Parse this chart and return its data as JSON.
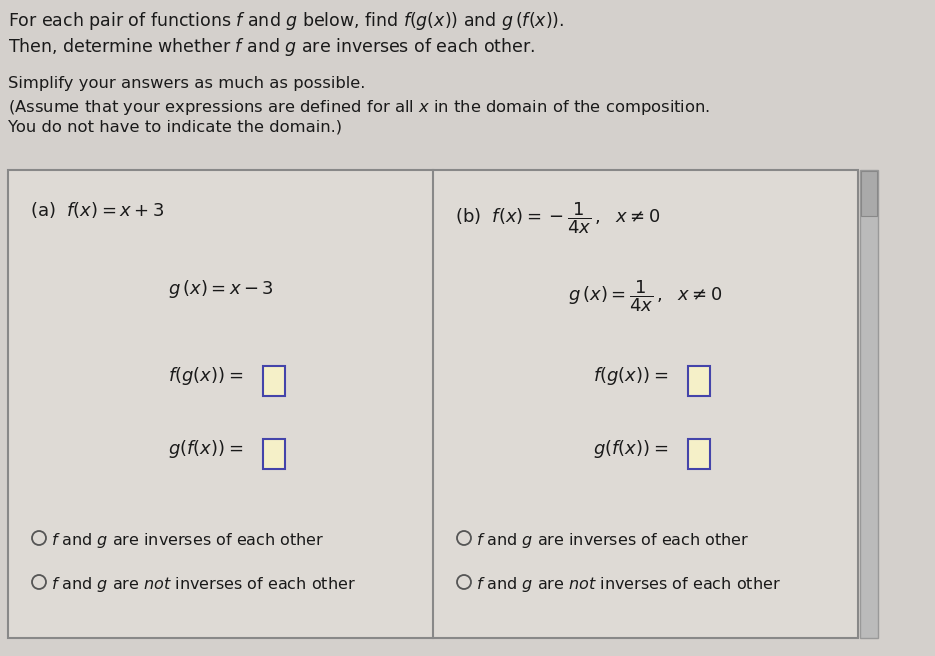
{
  "bg_color": "#d4d0cc",
  "table_bg_color": "#dedad5",
  "box_border_color": "#888888",
  "text_color": "#1a1a1a",
  "header_lines": [
    "For each pair of functions $\\mathit{f}$ and $g$ below, find $f(g(x))$ and $g\\,(f(x))$.",
    "Then, determine whether $\\mathit{f}$ and $g$ are inverses of each other."
  ],
  "subheader_lines": [
    "Simplify your answers as much as possible.",
    "(Assume that your expressions are defined for all $x$ in the domain of the composition.",
    "You do not have to indicate the domain.)"
  ],
  "col_a_fx": "(a)  $f(x) = x + 3$",
  "col_a_gx": "$g\\,(x) = x - 3$",
  "col_a_fgx_label": "$f(g(x)) = $",
  "col_a_gfx_label": "$g(f(x)) = $",
  "col_b_fx": "(b)  $f(x) = -\\dfrac{1}{4x}\\,,\\ \\ x \\neq 0$",
  "col_b_gx": "$g\\,(x) = \\dfrac{1}{4x}\\,,\\ \\ x \\neq 0$",
  "col_b_fgx_label": "$f(g(x)) = $",
  "col_b_gfx_label": "$g(f(x)) = $",
  "radio1_text": "$f$ and $g$ are inverses of each other",
  "radio2_text": "$f$ and $g$ are $\\it{not}$ inverses of each other",
  "input_box_fill": "#f5f0c8",
  "input_box_edge": "#4444aa",
  "scroll_fill": "#bbbbbb",
  "scroll_edge": "#999999",
  "scroll_thumb_fill": "#aaaaaa"
}
